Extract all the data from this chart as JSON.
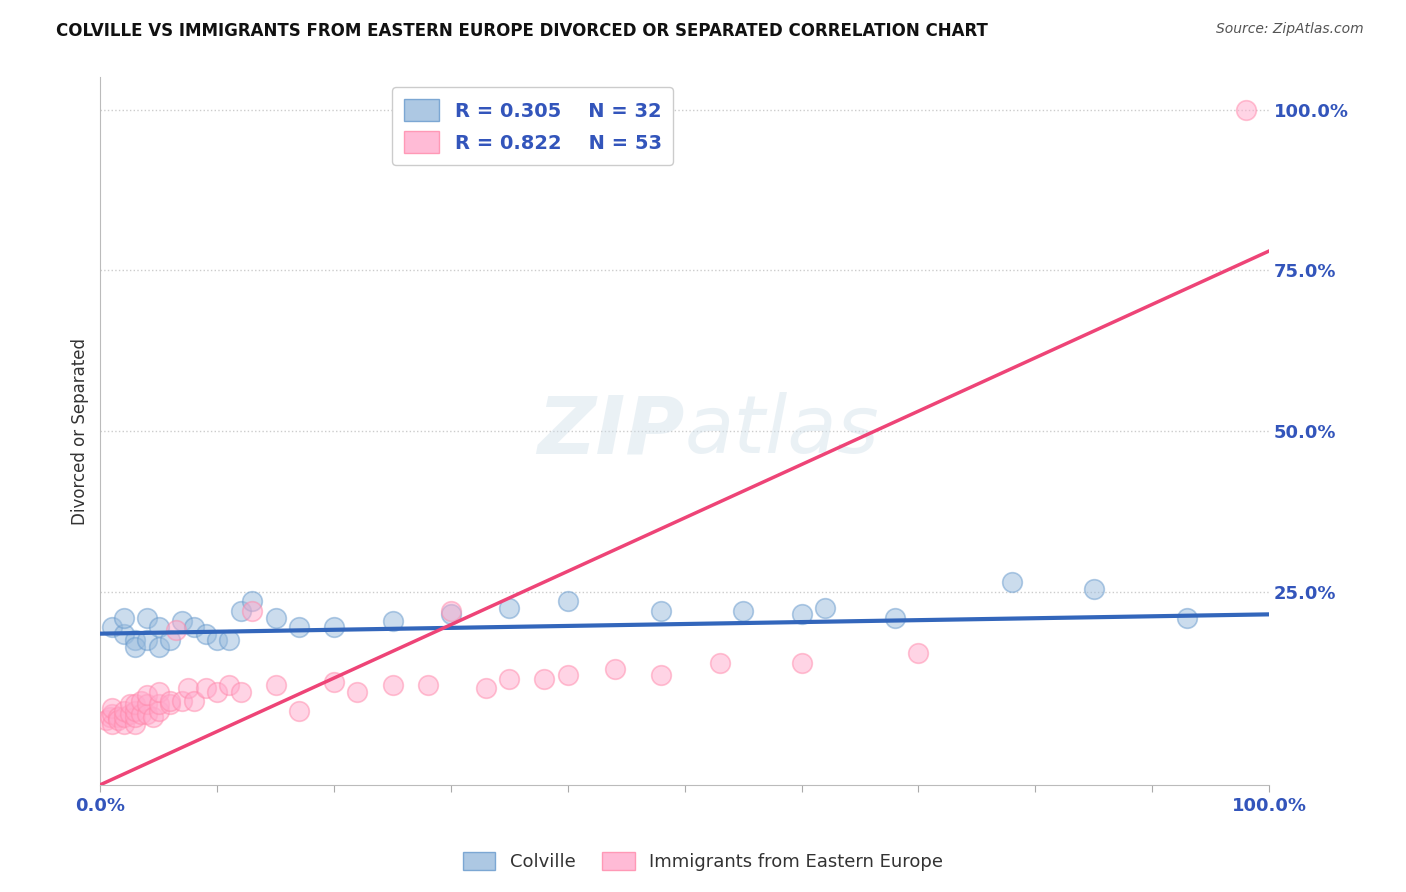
{
  "title": "COLVILLE VS IMMIGRANTS FROM EASTERN EUROPE DIVORCED OR SEPARATED CORRELATION CHART",
  "source": "Source: ZipAtlas.com",
  "ylabel": "Divorced or Separated",
  "xlabel": "",
  "legend_blue_label": "Colville",
  "legend_pink_label": "Immigrants from Eastern Europe",
  "R_blue": 0.305,
  "N_blue": 32,
  "R_pink": 0.822,
  "N_pink": 53,
  "blue_color": "#99BBDD",
  "pink_color": "#FFAACC",
  "blue_edge_color": "#6699CC",
  "pink_edge_color": "#FF88AA",
  "blue_line_color": "#3366BB",
  "pink_line_color": "#EE4477",
  "background_color": "#FFFFFF",
  "grid_color": "#CCCCCC",
  "blue_scatter_x": [
    0.01,
    0.02,
    0.02,
    0.03,
    0.03,
    0.04,
    0.04,
    0.05,
    0.05,
    0.06,
    0.07,
    0.08,
    0.09,
    0.1,
    0.11,
    0.12,
    0.13,
    0.15,
    0.17,
    0.2,
    0.25,
    0.3,
    0.35,
    0.4,
    0.48,
    0.55,
    0.6,
    0.62,
    0.68,
    0.78,
    0.85,
    0.93
  ],
  "blue_scatter_y": [
    0.195,
    0.185,
    0.21,
    0.175,
    0.165,
    0.175,
    0.21,
    0.195,
    0.165,
    0.175,
    0.205,
    0.195,
    0.185,
    0.175,
    0.175,
    0.22,
    0.235,
    0.21,
    0.195,
    0.195,
    0.205,
    0.215,
    0.225,
    0.235,
    0.22,
    0.22,
    0.215,
    0.225,
    0.21,
    0.265,
    0.255,
    0.21
  ],
  "pink_scatter_x": [
    0.005,
    0.008,
    0.01,
    0.01,
    0.01,
    0.015,
    0.015,
    0.02,
    0.02,
    0.02,
    0.025,
    0.025,
    0.03,
    0.03,
    0.03,
    0.03,
    0.035,
    0.035,
    0.04,
    0.04,
    0.04,
    0.045,
    0.05,
    0.05,
    0.05,
    0.06,
    0.06,
    0.065,
    0.07,
    0.075,
    0.08,
    0.09,
    0.1,
    0.11,
    0.12,
    0.13,
    0.15,
    0.17,
    0.2,
    0.22,
    0.25,
    0.28,
    0.3,
    0.33,
    0.35,
    0.38,
    0.4,
    0.44,
    0.48,
    0.53,
    0.6,
    0.7,
    0.98
  ],
  "pink_scatter_y": [
    0.05,
    0.055,
    0.045,
    0.06,
    0.07,
    0.055,
    0.05,
    0.045,
    0.055,
    0.065,
    0.06,
    0.075,
    0.045,
    0.055,
    0.065,
    0.075,
    0.06,
    0.08,
    0.06,
    0.075,
    0.09,
    0.055,
    0.065,
    0.075,
    0.095,
    0.075,
    0.08,
    0.19,
    0.08,
    0.1,
    0.08,
    0.1,
    0.095,
    0.105,
    0.095,
    0.22,
    0.105,
    0.065,
    0.11,
    0.095,
    0.105,
    0.105,
    0.22,
    0.1,
    0.115,
    0.115,
    0.12,
    0.13,
    0.12,
    0.14,
    0.14,
    0.155,
    1.0
  ],
  "xlim": [
    0.0,
    1.0
  ],
  "ylim": [
    -0.05,
    1.05
  ],
  "y_tick_values": [
    0.25,
    0.5,
    0.75,
    1.0
  ],
  "y_tick_labels": [
    "25.0%",
    "50.0%",
    "75.0%",
    "100.0%"
  ],
  "pink_line_x0": 0.0,
  "pink_line_y0": -0.05,
  "pink_line_x1": 1.0,
  "pink_line_y1": 0.78,
  "blue_line_x0": 0.0,
  "blue_line_y0": 0.185,
  "blue_line_x1": 1.0,
  "blue_line_y1": 0.215
}
